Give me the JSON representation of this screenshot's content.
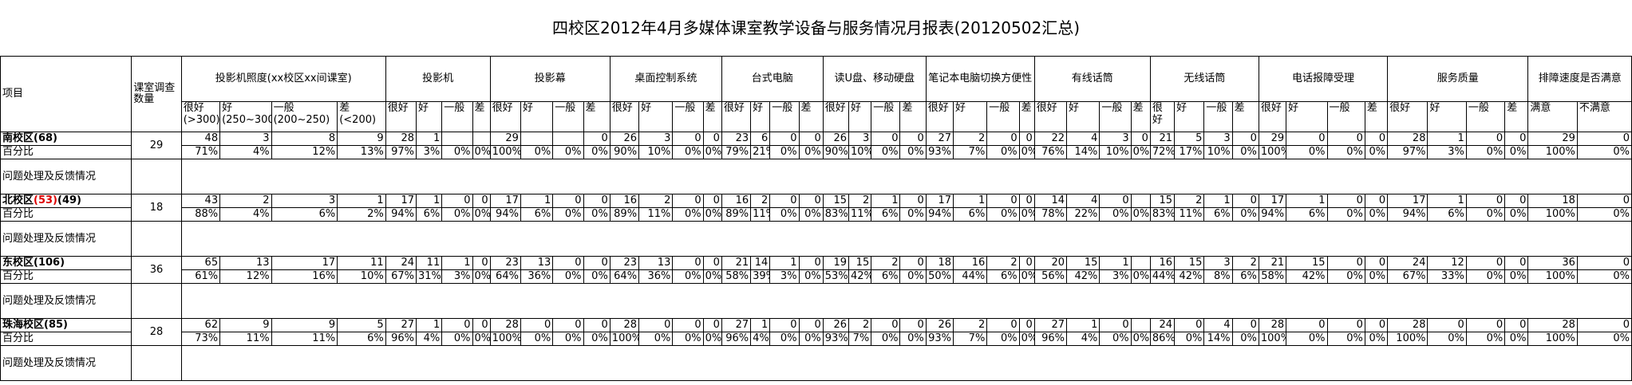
{
  "title": "四校区2012年4月多媒体课室教学设备与服务情况月报表(20120502汇总)",
  "header": {
    "item": "项目",
    "survey_count": "课室调查数量",
    "groups": [
      {
        "label": "投影机照度(xx校区xx间课室)",
        "subs": [
          "很好(>300)",
          "好(250~300)",
          "一般(200~250)",
          "差(<200)"
        ]
      },
      {
        "label": "投影机",
        "subs": [
          "很好",
          "好",
          "一般",
          "差"
        ]
      },
      {
        "label": "投影幕",
        "subs": [
          "很好",
          "好",
          "一般",
          "差"
        ]
      },
      {
        "label": "桌面控制系统",
        "subs": [
          "很好",
          "好",
          "一般",
          "差"
        ]
      },
      {
        "label": "台式电脑",
        "subs": [
          "很好",
          "好",
          "一般",
          "差"
        ]
      },
      {
        "label": "读U盘、移动硬盘",
        "subs": [
          "很好",
          "好",
          "一般",
          "差"
        ]
      },
      {
        "label": "笔记本电脑切换方便性",
        "subs": [
          "很好",
          "好",
          "一般",
          "差"
        ]
      },
      {
        "label": "有线话筒",
        "subs": [
          "很好",
          "好",
          "一般",
          "差"
        ]
      },
      {
        "label": "无线话筒",
        "subs": [
          "很好",
          "好",
          "一般",
          "差"
        ]
      },
      {
        "label": "电话报障受理",
        "subs": [
          "很好",
          "好",
          "一般",
          "差"
        ]
      },
      {
        "label": "服务质量",
        "subs": [
          "很好",
          "好",
          "一般",
          "差"
        ]
      },
      {
        "label": "排障速度是否满意",
        "subs": [
          "满意",
          "不满意"
        ]
      }
    ]
  },
  "pct_label": "百分比",
  "feedback_label": "问题处理及反馈情况",
  "schools": [
    {
      "name": "南校区(68)",
      "name_main": "南校区",
      "name_red": "",
      "name_tail": "(68)",
      "count": "29",
      "values": [
        "48",
        "3",
        "8",
        "9",
        "28",
        "1",
        "",
        "",
        "29",
        "",
        "",
        "0",
        "26",
        "3",
        "0",
        "0",
        "23",
        "6",
        "0",
        "0",
        "26",
        "3",
        "0",
        "0",
        "27",
        "2",
        "0",
        "0",
        "22",
        "4",
        "3",
        "0",
        "21",
        "5",
        "3",
        "0",
        "29",
        "0",
        "0",
        "0",
        "28",
        "1",
        "0",
        "0",
        "29",
        "0"
      ],
      "pcts": [
        "71%",
        "4%",
        "12%",
        "13%",
        "97%",
        "3%",
        "0%",
        "0%",
        "100%",
        "0%",
        "0%",
        "0%",
        "90%",
        "10%",
        "0%",
        "0%",
        "79%",
        "21%",
        "0%",
        "0%",
        "90%",
        "10%",
        "0%",
        "0%",
        "93%",
        "7%",
        "0%",
        "0%",
        "76%",
        "14%",
        "10%",
        "0%",
        "72%",
        "17%",
        "10%",
        "0%",
        "100%",
        "0%",
        "0%",
        "0%",
        "97%",
        "3%",
        "0%",
        "0%",
        "100%",
        "0%"
      ]
    },
    {
      "name": "北校区(53)(49)",
      "name_main": "北校区",
      "name_red": "(53)",
      "name_tail": "(49)",
      "count": "18",
      "values": [
        "43",
        "2",
        "3",
        "1",
        "17",
        "1",
        "0",
        "0",
        "17",
        "1",
        "0",
        "0",
        "16",
        "2",
        "0",
        "0",
        "16",
        "2",
        "0",
        "0",
        "15",
        "2",
        "1",
        "0",
        "17",
        "1",
        "0",
        "0",
        "14",
        "4",
        "0",
        "",
        "15",
        "2",
        "1",
        "0",
        "17",
        "1",
        "0",
        "0",
        "17",
        "1",
        "0",
        "0",
        "18",
        "0"
      ],
      "pcts": [
        "88%",
        "4%",
        "6%",
        "2%",
        "94%",
        "6%",
        "0%",
        "0%",
        "94%",
        "6%",
        "0%",
        "0%",
        "89%",
        "11%",
        "0%",
        "0%",
        "89%",
        "11%",
        "0%",
        "0%",
        "83%",
        "11%",
        "6%",
        "0%",
        "94%",
        "6%",
        "0%",
        "0%",
        "78%",
        "22%",
        "0%",
        "0%",
        "83%",
        "11%",
        "6%",
        "0%",
        "94%",
        "6%",
        "0%",
        "0%",
        "94%",
        "6%",
        "0%",
        "0%",
        "100%",
        "0%"
      ]
    },
    {
      "name": "东校区(106)",
      "name_main": "东校区",
      "name_red": "",
      "name_tail": "(106)",
      "count": "36",
      "values": [
        "65",
        "13",
        "17",
        "11",
        "24",
        "11",
        "1",
        "0",
        "23",
        "13",
        "0",
        "0",
        "23",
        "13",
        "0",
        "0",
        "21",
        "14",
        "1",
        "0",
        "19",
        "15",
        "2",
        "0",
        "18",
        "16",
        "2",
        "0",
        "20",
        "15",
        "1",
        "",
        "16",
        "15",
        "3",
        "2",
        "21",
        "15",
        "0",
        "0",
        "24",
        "12",
        "0",
        "0",
        "36",
        "0"
      ],
      "pcts": [
        "61%",
        "12%",
        "16%",
        "10%",
        "67%",
        "31%",
        "3%",
        "0%",
        "64%",
        "36%",
        "0%",
        "0%",
        "64%",
        "36%",
        "0%",
        "0%",
        "58%",
        "39%",
        "3%",
        "0%",
        "53%",
        "42%",
        "6%",
        "0%",
        "50%",
        "44%",
        "6%",
        "0%",
        "56%",
        "42%",
        "3%",
        "0%",
        "44%",
        "42%",
        "8%",
        "6%",
        "58%",
        "42%",
        "0%",
        "0%",
        "67%",
        "33%",
        "0%",
        "0%",
        "100%",
        "0%"
      ]
    },
    {
      "name": "珠海校区(85)",
      "name_main": "珠海校区",
      "name_red": "",
      "name_tail": "(85)",
      "count": "28",
      "values": [
        "62",
        "9",
        "9",
        "5",
        "27",
        "1",
        "0",
        "0",
        "28",
        "0",
        "0",
        "0",
        "28",
        "0",
        "0",
        "0",
        "27",
        "1",
        "0",
        "0",
        "26",
        "2",
        "0",
        "0",
        "26",
        "2",
        "0",
        "0",
        "27",
        "1",
        "0",
        "",
        "24",
        "0",
        "4",
        "0",
        "28",
        "0",
        "0",
        "0",
        "28",
        "0",
        "0",
        "0",
        "28",
        "0"
      ],
      "pcts": [
        "73%",
        "11%",
        "11%",
        "6%",
        "96%",
        "4%",
        "0%",
        "0%",
        "100%",
        "0%",
        "0%",
        "0%",
        "100%",
        "0%",
        "0%",
        "0%",
        "96%",
        "4%",
        "0%",
        "0%",
        "93%",
        "7%",
        "0%",
        "0%",
        "93%",
        "7%",
        "0%",
        "0%",
        "96%",
        "4%",
        "0%",
        "0%",
        "86%",
        "0%",
        "14%",
        "0%",
        "100%",
        "0%",
        "0%",
        "0%",
        "100%",
        "0%",
        "0%",
        "0%",
        "100%",
        "0%"
      ]
    }
  ]
}
